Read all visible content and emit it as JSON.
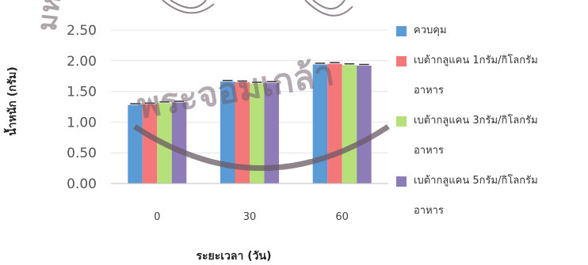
{
  "chart_data": {
    "type": "bar",
    "categories": [
      "0",
      "30",
      "60"
    ],
    "xlabel": "ระยะเวลา (วัน)",
    "ylabel": "น้ำหนัก (กรัม)",
    "ylim": [
      0,
      2.5
    ],
    "yticks": [
      "0.00",
      "0.50",
      "1.00",
      "1.50",
      "2.00",
      "2.50"
    ],
    "error_bars": true,
    "legend_position": "right",
    "series": [
      {
        "name": "ควบคุม",
        "color": "#5b9bd5",
        "values": [
          1.28,
          1.66,
          1.94
        ]
      },
      {
        "name": "เบต้ากลูแคน 1กรัม/กิโลกรัม อาหาร",
        "color": "#f4777a",
        "values": [
          1.29,
          1.65,
          1.95
        ]
      },
      {
        "name": "เบต้ากลูแคน 3กรัม/กิโลกรัม อาหาร",
        "color": "#b5e07a",
        "values": [
          1.31,
          1.63,
          1.93
        ]
      },
      {
        "name": "เบต้ากลูแคน 5กรัม/กิโลกรัม อาหาร",
        "color": "#8e7cb8",
        "values": [
          1.32,
          1.64,
          1.92
        ]
      }
    ]
  },
  "legend": [
    {
      "line1": "ควบคุม",
      "line2": ""
    },
    {
      "line1": "เบต้ากลูแคน 1กรัม/กิโลกรัม",
      "line2": "อาหาร"
    },
    {
      "line1": "เบต้ากลูแคน 3กรัม/กิโลกรัม",
      "line2": "อาหาร"
    },
    {
      "line1": "เบต้ากลูแคน 5กรัม/กิโลกรัม",
      "line2": "อาหาร"
    }
  ],
  "watermark": {
    "text": "มหาวิทยาลัยพระจอมเกล้าเจ้าคุณทหารลาดกระบัง",
    "center_text": "พระจอมเกล้า",
    "color": "#6a5a66"
  }
}
